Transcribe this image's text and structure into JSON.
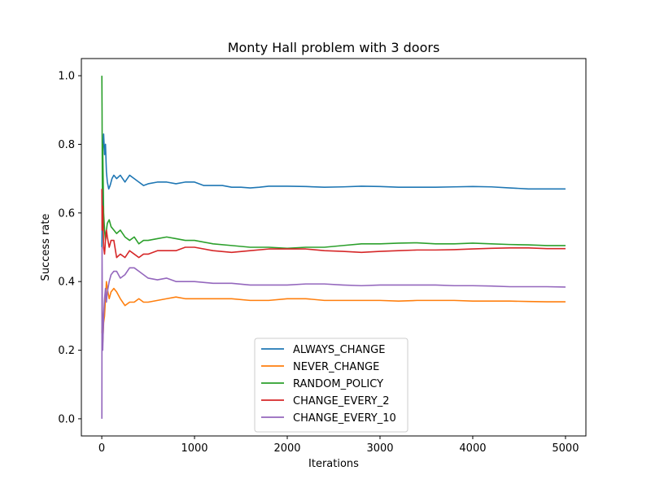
{
  "chart_data": {
    "type": "line",
    "title": "Monty Hall problem with 3 doors",
    "xlabel": "Iterations",
    "ylabel": "Success rate",
    "xlim": [
      -220,
      5220
    ],
    "ylim": [
      -0.05,
      1.05
    ],
    "xticks": [
      0,
      1000,
      2000,
      3000,
      4000,
      5000
    ],
    "xtick_labels": [
      "0",
      "1000",
      "2000",
      "3000",
      "4000",
      "5000"
    ],
    "yticks": [
      0.0,
      0.2,
      0.4,
      0.6,
      0.8,
      1.0
    ],
    "ytick_labels": [
      "0.0",
      "0.2",
      "0.4",
      "0.6",
      "0.8",
      "1.0"
    ],
    "grid": false,
    "legend_position": "lower-center",
    "series": [
      {
        "name": "ALWAYS_CHANGE",
        "color": "#1f77b4",
        "x": [
          1,
          5,
          10,
          20,
          30,
          40,
          50,
          60,
          75,
          90,
          110,
          130,
          160,
          200,
          250,
          300,
          350,
          400,
          450,
          500,
          600,
          700,
          800,
          900,
          1000,
          1100,
          1200,
          1300,
          1400,
          1500,
          1600,
          1700,
          1800,
          2000,
          2200,
          2400,
          2600,
          2800,
          3000,
          3200,
          3400,
          3600,
          3800,
          4000,
          4200,
          4400,
          4600,
          4800,
          5000
        ],
        "values": [
          0.5,
          0.6,
          0.78,
          0.83,
          0.77,
          0.8,
          0.72,
          0.69,
          0.67,
          0.68,
          0.7,
          0.71,
          0.7,
          0.71,
          0.69,
          0.71,
          0.7,
          0.69,
          0.68,
          0.685,
          0.69,
          0.69,
          0.685,
          0.69,
          0.69,
          0.68,
          0.68,
          0.68,
          0.675,
          0.675,
          0.673,
          0.675,
          0.678,
          0.678,
          0.677,
          0.675,
          0.676,
          0.678,
          0.677,
          0.675,
          0.675,
          0.675,
          0.676,
          0.677,
          0.676,
          0.673,
          0.67,
          0.67,
          0.67
        ]
      },
      {
        "name": "NEVER_CHANGE",
        "color": "#ff7f0e",
        "x": [
          1,
          5,
          10,
          20,
          30,
          40,
          50,
          60,
          80,
          100,
          130,
          160,
          200,
          250,
          300,
          350,
          400,
          450,
          500,
          600,
          700,
          800,
          900,
          1000,
          1200,
          1400,
          1600,
          1800,
          2000,
          2200,
          2400,
          2600,
          2800,
          3000,
          3200,
          3400,
          3600,
          3800,
          4000,
          4200,
          4400,
          4600,
          4800,
          5000
        ],
        "values": [
          0.25,
          0.33,
          0.22,
          0.28,
          0.3,
          0.35,
          0.4,
          0.38,
          0.35,
          0.37,
          0.38,
          0.37,
          0.35,
          0.33,
          0.34,
          0.34,
          0.35,
          0.34,
          0.34,
          0.345,
          0.35,
          0.355,
          0.35,
          0.35,
          0.35,
          0.35,
          0.345,
          0.345,
          0.35,
          0.35,
          0.345,
          0.345,
          0.345,
          0.345,
          0.343,
          0.345,
          0.345,
          0.345,
          0.343,
          0.343,
          0.343,
          0.342,
          0.341,
          0.341
        ]
      },
      {
        "name": "RANDOM_POLICY",
        "color": "#2ca02c",
        "x": [
          1,
          3,
          6,
          10,
          20,
          30,
          40,
          50,
          60,
          80,
          100,
          130,
          160,
          200,
          250,
          300,
          350,
          400,
          450,
          500,
          600,
          700,
          800,
          900,
          1000,
          1200,
          1400,
          1600,
          1800,
          2000,
          2200,
          2400,
          2600,
          2800,
          3000,
          3200,
          3400,
          3600,
          3800,
          4000,
          4200,
          4400,
          4600,
          4800,
          5000
        ],
        "values": [
          1.0,
          0.9,
          0.67,
          0.8,
          0.6,
          0.55,
          0.52,
          0.55,
          0.57,
          0.58,
          0.56,
          0.55,
          0.54,
          0.55,
          0.53,
          0.52,
          0.53,
          0.51,
          0.52,
          0.52,
          0.525,
          0.53,
          0.525,
          0.52,
          0.52,
          0.51,
          0.505,
          0.5,
          0.5,
          0.497,
          0.5,
          0.5,
          0.505,
          0.51,
          0.51,
          0.512,
          0.513,
          0.51,
          0.51,
          0.512,
          0.51,
          0.508,
          0.507,
          0.505,
          0.505
        ]
      },
      {
        "name": "CHANGE_EVERY_2",
        "color": "#d62728",
        "x": [
          1,
          3,
          6,
          10,
          20,
          30,
          40,
          50,
          60,
          80,
          100,
          130,
          160,
          200,
          250,
          300,
          350,
          400,
          450,
          500,
          600,
          700,
          800,
          900,
          1000,
          1200,
          1400,
          1600,
          1800,
          2000,
          2200,
          2400,
          2600,
          2800,
          3000,
          3200,
          3400,
          3600,
          3800,
          4000,
          4200,
          4400,
          4600,
          4800,
          5000
        ],
        "values": [
          0.67,
          0.55,
          0.6,
          0.62,
          0.5,
          0.48,
          0.52,
          0.55,
          0.53,
          0.5,
          0.52,
          0.52,
          0.47,
          0.48,
          0.47,
          0.49,
          0.48,
          0.47,
          0.48,
          0.48,
          0.49,
          0.49,
          0.49,
          0.5,
          0.5,
          0.49,
          0.485,
          0.49,
          0.495,
          0.495,
          0.495,
          0.49,
          0.488,
          0.485,
          0.488,
          0.49,
          0.492,
          0.492,
          0.493,
          0.495,
          0.497,
          0.498,
          0.498,
          0.496,
          0.496
        ]
      },
      {
        "name": "CHANGE_EVERY_10",
        "color": "#9467bd",
        "x": [
          1,
          3,
          6,
          10,
          20,
          30,
          40,
          50,
          60,
          80,
          100,
          130,
          160,
          200,
          250,
          300,
          350,
          400,
          450,
          500,
          600,
          700,
          800,
          900,
          1000,
          1200,
          1400,
          1600,
          1800,
          2000,
          2200,
          2400,
          2600,
          2800,
          3000,
          3200,
          3400,
          3600,
          3800,
          4000,
          4200,
          4400,
          4600,
          4800,
          5000
        ],
        "values": [
          0.0,
          0.5,
          0.33,
          0.2,
          0.3,
          0.35,
          0.38,
          0.34,
          0.37,
          0.4,
          0.42,
          0.43,
          0.43,
          0.41,
          0.42,
          0.44,
          0.44,
          0.43,
          0.42,
          0.41,
          0.405,
          0.41,
          0.4,
          0.4,
          0.4,
          0.395,
          0.395,
          0.39,
          0.39,
          0.39,
          0.393,
          0.393,
          0.39,
          0.388,
          0.39,
          0.39,
          0.39,
          0.39,
          0.388,
          0.388,
          0.387,
          0.385,
          0.385,
          0.385,
          0.384
        ]
      }
    ]
  }
}
